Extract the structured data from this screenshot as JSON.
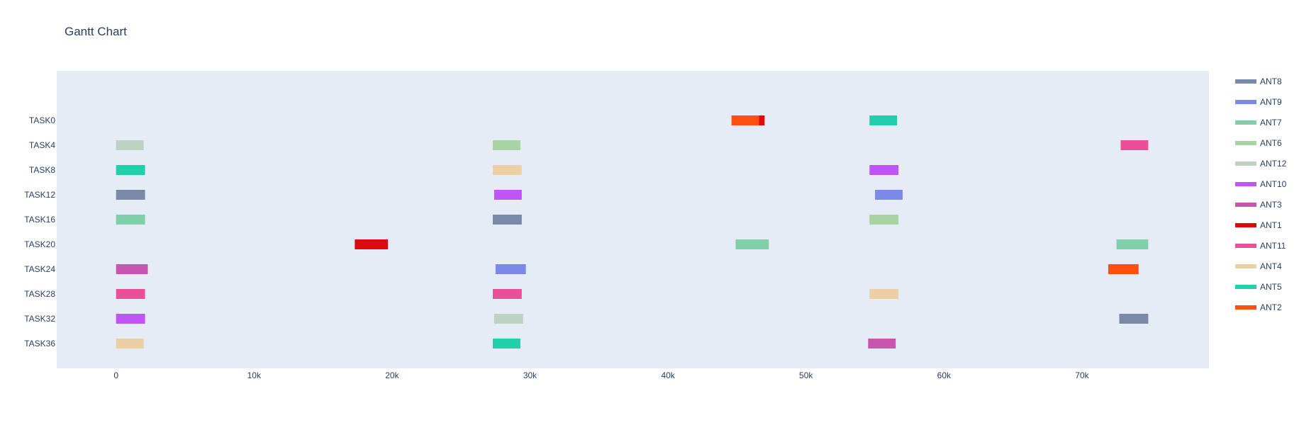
{
  "chart_data": {
    "type": "gantt",
    "title": "Gantt Chart",
    "xlim": [
      -4300,
      79200
    ],
    "x_ticks": [
      {
        "value": 0,
        "label": "0"
      },
      {
        "value": 10000,
        "label": "10k"
      },
      {
        "value": 20000,
        "label": "20k"
      },
      {
        "value": 30000,
        "label": "30k"
      },
      {
        "value": 40000,
        "label": "40k"
      },
      {
        "value": 50000,
        "label": "50k"
      },
      {
        "value": 60000,
        "label": "60k"
      },
      {
        "value": 70000,
        "label": "70k"
      }
    ],
    "tasks": [
      "TASK0",
      "TASK4",
      "TASK8",
      "TASK12",
      "TASK16",
      "TASK20",
      "TASK24",
      "TASK28",
      "TASK32",
      "TASK36"
    ],
    "legend": [
      {
        "name": "ANT8",
        "color": "#7a89a8"
      },
      {
        "name": "ANT9",
        "color": "#7b8ae8"
      },
      {
        "name": "ANT7",
        "color": "#7fcfa8"
      },
      {
        "name": "ANT6",
        "color": "#a8d4a4"
      },
      {
        "name": "ANT12",
        "color": "#bdd2c0"
      },
      {
        "name": "ANT10",
        "color": "#c054f5"
      },
      {
        "name": "ANT3",
        "color": "#c856b0"
      },
      {
        "name": "ANT1",
        "color": "#dc0a0a"
      },
      {
        "name": "ANT11",
        "color": "#ec4f9a"
      },
      {
        "name": "ANT4",
        "color": "#eccfa4"
      },
      {
        "name": "ANT5",
        "color": "#20d0aa"
      },
      {
        "name": "ANT2",
        "color": "#ff5010"
      }
    ],
    "bars": [
      {
        "task": "TASK0",
        "resource": "ANT2",
        "start": 44600,
        "end": 46700
      },
      {
        "task": "TASK0",
        "resource": "ANT1",
        "start": 46600,
        "end": 47000
      },
      {
        "task": "TASK0",
        "resource": "ANT5",
        "start": 54600,
        "end": 56600
      },
      {
        "task": "TASK4",
        "resource": "ANT12",
        "start": 0,
        "end": 2000
      },
      {
        "task": "TASK4",
        "resource": "ANT6",
        "start": 27300,
        "end": 29300
      },
      {
        "task": "TASK4",
        "resource": "ANT11",
        "start": 72800,
        "end": 74800
      },
      {
        "task": "TASK8",
        "resource": "ANT5",
        "start": 0,
        "end": 2100
      },
      {
        "task": "TASK8",
        "resource": "ANT4",
        "start": 27300,
        "end": 29400
      },
      {
        "task": "TASK8",
        "resource": "ANT10",
        "start": 54600,
        "end": 56700
      },
      {
        "task": "TASK12",
        "resource": "ANT8",
        "start": 0,
        "end": 2100
      },
      {
        "task": "TASK12",
        "resource": "ANT10",
        "start": 27400,
        "end": 29400
      },
      {
        "task": "TASK12",
        "resource": "ANT9",
        "start": 55000,
        "end": 57000
      },
      {
        "task": "TASK16",
        "resource": "ANT7",
        "start": 0,
        "end": 2100
      },
      {
        "task": "TASK16",
        "resource": "ANT8",
        "start": 27300,
        "end": 29400
      },
      {
        "task": "TASK16",
        "resource": "ANT6",
        "start": 54600,
        "end": 56700
      },
      {
        "task": "TASK20",
        "resource": "ANT1",
        "start": 17300,
        "end": 19700
      },
      {
        "task": "TASK20",
        "resource": "ANT7",
        "start": 44900,
        "end": 47300
      },
      {
        "task": "TASK20",
        "resource": "ANT7",
        "start": 72500,
        "end": 74800
      },
      {
        "task": "TASK24",
        "resource": "ANT3",
        "start": 0,
        "end": 2300
      },
      {
        "task": "TASK24",
        "resource": "ANT9",
        "start": 27500,
        "end": 29700
      },
      {
        "task": "TASK24",
        "resource": "ANT2",
        "start": 71900,
        "end": 74100
      },
      {
        "task": "TASK28",
        "resource": "ANT11",
        "start": 0,
        "end": 2100
      },
      {
        "task": "TASK28",
        "resource": "ANT11",
        "start": 27300,
        "end": 29400
      },
      {
        "task": "TASK28",
        "resource": "ANT4",
        "start": 54600,
        "end": 56700
      },
      {
        "task": "TASK32",
        "resource": "ANT10",
        "start": 0,
        "end": 2100
      },
      {
        "task": "TASK32",
        "resource": "ANT12",
        "start": 27400,
        "end": 29500
      },
      {
        "task": "TASK32",
        "resource": "ANT8",
        "start": 72700,
        "end": 74800
      },
      {
        "task": "TASK36",
        "resource": "ANT4",
        "start": 0,
        "end": 2000
      },
      {
        "task": "TASK36",
        "resource": "ANT5",
        "start": 27300,
        "end": 29300
      },
      {
        "task": "TASK36",
        "resource": "ANT3",
        "start": 54500,
        "end": 56500
      }
    ]
  }
}
